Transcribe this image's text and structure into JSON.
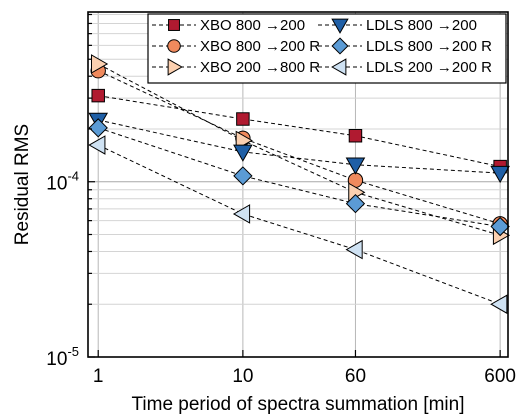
{
  "chart_data": {
    "type": "line",
    "xscale": "log",
    "yscale": "log",
    "xlabel": "Time period of spectra summation [min]",
    "ylabel": "Residual RMS",
    "xlim": [
      0.85,
      680
    ],
    "ylim": [
      1e-05,
      0.00093
    ],
    "xticks": [
      {
        "value": 1,
        "label": "1"
      },
      {
        "value": 10,
        "label": "10"
      },
      {
        "value": 60,
        "label": "60"
      },
      {
        "value": 600,
        "label": "600"
      }
    ],
    "yticks": [
      {
        "value": 1e-05,
        "base": "10",
        "exp": "-5"
      },
      {
        "value": 0.0001,
        "base": "10",
        "exp": "-4"
      }
    ],
    "grid": true,
    "legend_position": "top",
    "series": [
      {
        "name": "XBO 800 →200",
        "color": "#b01a30",
        "marker": "square",
        "x": [
          1,
          10,
          60,
          600
        ],
        "y": [
          0.00031,
          0.000228,
          0.000183,
          0.000122
        ]
      },
      {
        "name": "XBO 800 →200 R",
        "color": "#f08a5d",
        "marker": "circle",
        "x": [
          1,
          10,
          60,
          600
        ],
        "y": [
          0.00043,
          0.000177,
          0.000102,
          5.75e-05
        ]
      },
      {
        "name": "XBO 200 →800 R",
        "color": "#fbd0b0",
        "marker": "triangle-right",
        "x": [
          1,
          10,
          60,
          600
        ],
        "y": [
          0.00047,
          0.000172,
          8.7e-05,
          4.95e-05
        ]
      },
      {
        "name": "LDLS 800 →200",
        "color": "#1f5fa6",
        "marker": "triangle-down",
        "x": [
          1,
          10,
          60,
          600
        ],
        "y": [
          0.000225,
          0.000148,
          0.000125,
          0.000112
        ]
      },
      {
        "name": "LDLS 800 →200 R",
        "color": "#5b9bd5",
        "marker": "diamond",
        "x": [
          1,
          10,
          60,
          600
        ],
        "y": [
          0.000203,
          0.000108,
          7.5e-05,
          5.55e-05
        ]
      },
      {
        "name": "LDLS 200 →200 R",
        "color": "#cfe2f3",
        "marker": "triangle-left",
        "x": [
          1,
          10,
          60,
          600
        ],
        "y": [
          0.000162,
          6.55e-05,
          4.1e-05,
          2e-05
        ]
      }
    ]
  }
}
